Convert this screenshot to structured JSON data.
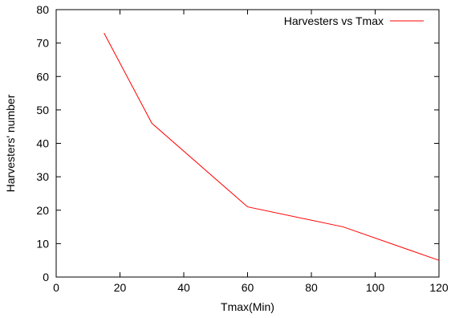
{
  "chart_data": {
    "type": "line",
    "xlabel": "Tmax(Min)",
    "ylabel": "Harvesters' number",
    "xlim": [
      0,
      120
    ],
    "ylim": [
      0,
      80
    ],
    "xticks": [
      0,
      20,
      40,
      60,
      80,
      100,
      120
    ],
    "yticks": [
      0,
      10,
      20,
      30,
      40,
      50,
      60,
      70,
      80
    ],
    "grid": false,
    "legend_position": "top-right",
    "series": [
      {
        "name": "Harvesters vs Tmax",
        "color": "#ff0000",
        "x": [
          15,
          30,
          60,
          90,
          120
        ],
        "y": [
          73,
          46,
          21,
          15,
          5
        ]
      }
    ]
  }
}
